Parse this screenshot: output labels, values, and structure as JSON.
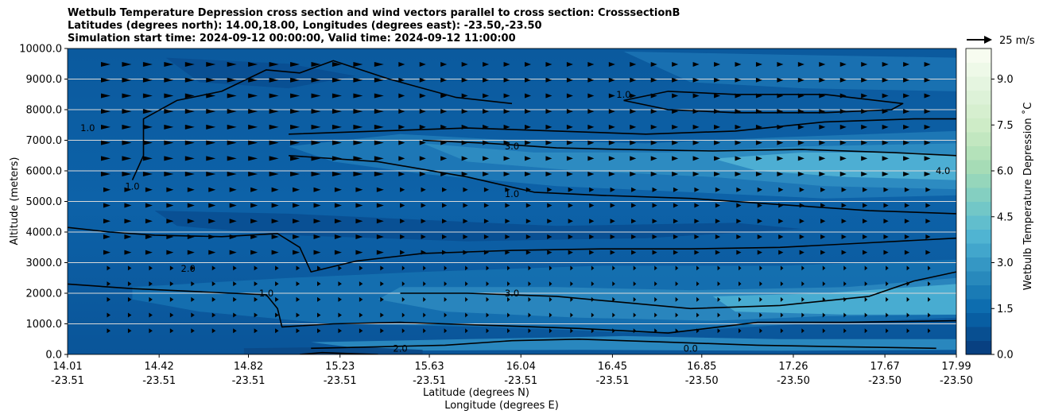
{
  "chart_data": {
    "type": "contour",
    "title_lines": [
      "Wetbulb Temperature Depression cross section and wind vectors parallel to cross section: CrosssectionB",
      "Latitudes (degrees north): 14.00,18.00, Longitudes (degrees east): -23.50,-23.50",
      "Simulation start time: 2024-09-12 00:00:00, Valid time: 2024-09-12 11:00:00"
    ],
    "ylabel": "Altitude (meters)",
    "xlabel_lines": [
      "Latitude (degrees N)",
      "Longitude (degrees E)"
    ],
    "ylim": [
      0,
      10000
    ],
    "yticks": [
      "0.0",
      "1000.0",
      "2000.0",
      "3000.0",
      "4000.0",
      "5000.0",
      "6000.0",
      "7000.0",
      "8000.0",
      "9000.0",
      "10000.0"
    ],
    "xticks": [
      {
        "lat": "14.01",
        "lon": "-23.51"
      },
      {
        "lat": "14.42",
        "lon": "-23.51"
      },
      {
        "lat": "14.82",
        "lon": "-23.51"
      },
      {
        "lat": "15.23",
        "lon": "-23.51"
      },
      {
        "lat": "15.63",
        "lon": "-23.51"
      },
      {
        "lat": "16.04",
        "lon": "-23.51"
      },
      {
        "lat": "16.45",
        "lon": "-23.51"
      },
      {
        "lat": "16.85",
        "lon": "-23.50"
      },
      {
        "lat": "17.26",
        "lon": "-23.50"
      },
      {
        "lat": "17.67",
        "lon": "-23.50"
      },
      {
        "lat": "17.99",
        "lon": "-23.50"
      }
    ],
    "grid": "horizontal",
    "quiver_key": "25 m/s",
    "colorbar": {
      "label": "Wetbulb Temperature Depression ˚C",
      "range": [
        0,
        10
      ],
      "ticks": [
        "0.0",
        "1.5",
        "3.0",
        "4.5",
        "6.0",
        "7.5",
        "9.0"
      ],
      "colormap": "GnBu",
      "colors": [
        "#084081",
        "#0868ac",
        "#2b8cbe",
        "#4eb3d3",
        "#7bccc4",
        "#a8ddb5",
        "#ccebc5",
        "#e0f3db",
        "#f7fcf0"
      ]
    },
    "contour_labels": [
      "1.0",
      "0.0",
      "2.0",
      "3.0",
      "4.0"
    ],
    "contour_lines": [
      {
        "level": 1.0,
        "points": [
          [
            14.01,
            4150
          ],
          [
            14.2,
            4000
          ],
          [
            14.4,
            3900
          ],
          [
            14.7,
            3850
          ],
          [
            14.95,
            3950
          ],
          [
            15.05,
            3500
          ],
          [
            15.1,
            2700
          ],
          [
            15.3,
            3050
          ],
          [
            15.6,
            3300
          ],
          [
            16.0,
            3400
          ],
          [
            16.4,
            3450
          ],
          [
            16.8,
            3450
          ],
          [
            17.2,
            3500
          ],
          [
            17.6,
            3650
          ],
          [
            17.99,
            3800
          ]
        ]
      },
      {
        "level": 1.0,
        "points": [
          [
            14.01,
            2300
          ],
          [
            14.3,
            2150
          ],
          [
            14.6,
            2050
          ],
          [
            14.9,
            1950
          ],
          [
            14.95,
            1500
          ],
          [
            14.97,
            900
          ],
          [
            15.2,
            1000
          ],
          [
            15.5,
            1050
          ],
          [
            15.9,
            950
          ],
          [
            16.3,
            850
          ],
          [
            16.7,
            700
          ],
          [
            17.1,
            1050
          ],
          [
            17.5,
            1050
          ],
          [
            17.99,
            1100
          ]
        ]
      },
      {
        "level": 1.0,
        "points": [
          [
            14.3,
            5700
          ],
          [
            14.35,
            6500
          ],
          [
            14.35,
            7700
          ],
          [
            14.5,
            8300
          ],
          [
            14.7,
            8600
          ],
          [
            14.9,
            9300
          ],
          [
            15.05,
            9200
          ],
          [
            15.2,
            9600
          ],
          [
            15.45,
            9000
          ],
          [
            15.75,
            8400
          ],
          [
            16.0,
            8200
          ]
        ]
      },
      {
        "level": 1.0,
        "points": [
          [
            15.0,
            6500
          ],
          [
            15.4,
            6300
          ],
          [
            15.8,
            5800
          ],
          [
            16.1,
            5300
          ],
          [
            16.4,
            5200
          ],
          [
            16.8,
            5100
          ],
          [
            17.2,
            4900
          ],
          [
            17.6,
            4700
          ],
          [
            17.99,
            4600
          ]
        ]
      },
      {
        "level": 1.0,
        "points": [
          [
            15.0,
            7200
          ],
          [
            15.4,
            7300
          ],
          [
            15.8,
            7400
          ],
          [
            16.2,
            7300
          ],
          [
            16.6,
            7200
          ],
          [
            17.0,
            7300
          ],
          [
            17.4,
            7600
          ],
          [
            17.8,
            7700
          ],
          [
            17.99,
            7700
          ]
        ]
      },
      {
        "level": 1.0,
        "points": [
          [
            16.5,
            8300
          ],
          [
            16.7,
            8000
          ],
          [
            17.0,
            7900
          ],
          [
            17.4,
            7900
          ],
          [
            17.7,
            8000
          ],
          [
            17.75,
            8200
          ],
          [
            17.4,
            8500
          ],
          [
            17.0,
            8500
          ],
          [
            16.7,
            8600
          ],
          [
            16.5,
            8300
          ]
        ]
      },
      {
        "level": 3.0,
        "points": [
          [
            15.6,
            7000
          ],
          [
            15.9,
            6900
          ],
          [
            16.2,
            6750
          ],
          [
            16.5,
            6700
          ],
          [
            16.9,
            6650
          ],
          [
            17.3,
            6700
          ],
          [
            17.7,
            6600
          ],
          [
            17.99,
            6500
          ]
        ]
      },
      {
        "level": 3.0,
        "points": [
          [
            15.5,
            2000
          ],
          [
            15.8,
            2000
          ],
          [
            16.2,
            1900
          ],
          [
            16.5,
            1700
          ],
          [
            16.8,
            1500
          ],
          [
            17.2,
            1600
          ],
          [
            17.6,
            1900
          ],
          [
            17.8,
            2400
          ],
          [
            17.99,
            2700
          ]
        ]
      },
      {
        "level": 2.0,
        "points": [
          [
            15.1,
            200
          ],
          [
            15.4,
            250
          ],
          [
            15.7,
            300
          ],
          [
            16.0,
            450
          ],
          [
            16.3,
            500
          ],
          [
            16.7,
            400
          ],
          [
            17.1,
            300
          ],
          [
            17.5,
            250
          ],
          [
            17.9,
            200
          ]
        ]
      },
      {
        "level": 0.0,
        "points": [
          [
            15.05,
            0
          ],
          [
            15.15,
            60
          ],
          [
            15.3,
            20
          ],
          [
            15.4,
            0
          ]
        ]
      }
    ]
  }
}
